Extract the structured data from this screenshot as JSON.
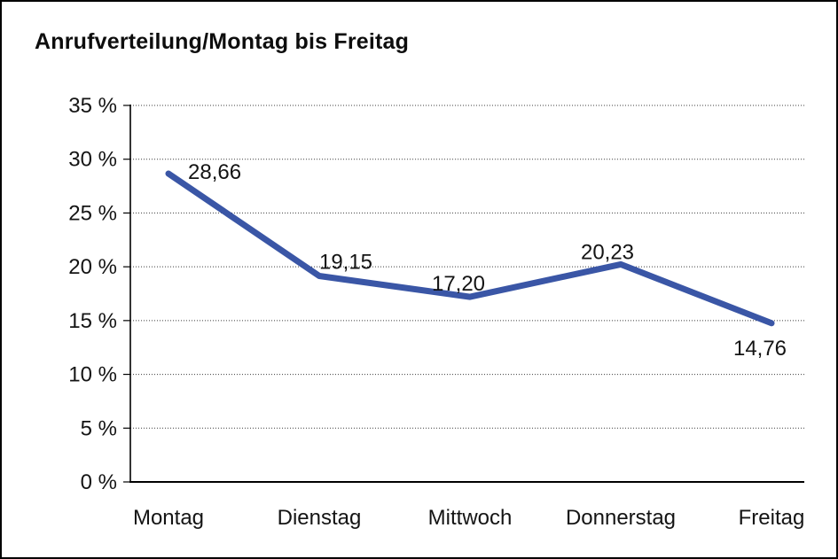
{
  "title": "Anrufverteilung/Montag bis Freitag",
  "chart_data": {
    "type": "line",
    "title": "Anrufverteilung/Montag bis Freitag",
    "categories": [
      "Montag",
      "Dienstag",
      "Mittwoch",
      "Donnerstag",
      "Freitag"
    ],
    "values": [
      28.66,
      19.15,
      17.2,
      20.23,
      14.76
    ],
    "value_labels": [
      "28,66",
      "19,15",
      "17,20",
      "20,23",
      "14,76"
    ],
    "xlabel": "",
    "ylabel": "",
    "ylim": [
      0,
      35
    ],
    "ytick_step": 5,
    "ytick_labels": [
      "0 %",
      "5 %",
      "10 %",
      "15 %",
      "20 %",
      "25 %",
      "30 %",
      "35 %"
    ],
    "grid": "horizontal-dotted",
    "legend_position": "none",
    "line_color": "#3A56A6",
    "text_color": "#141414",
    "background_color": "#FFFFFF",
    "border_color": "#000000"
  }
}
